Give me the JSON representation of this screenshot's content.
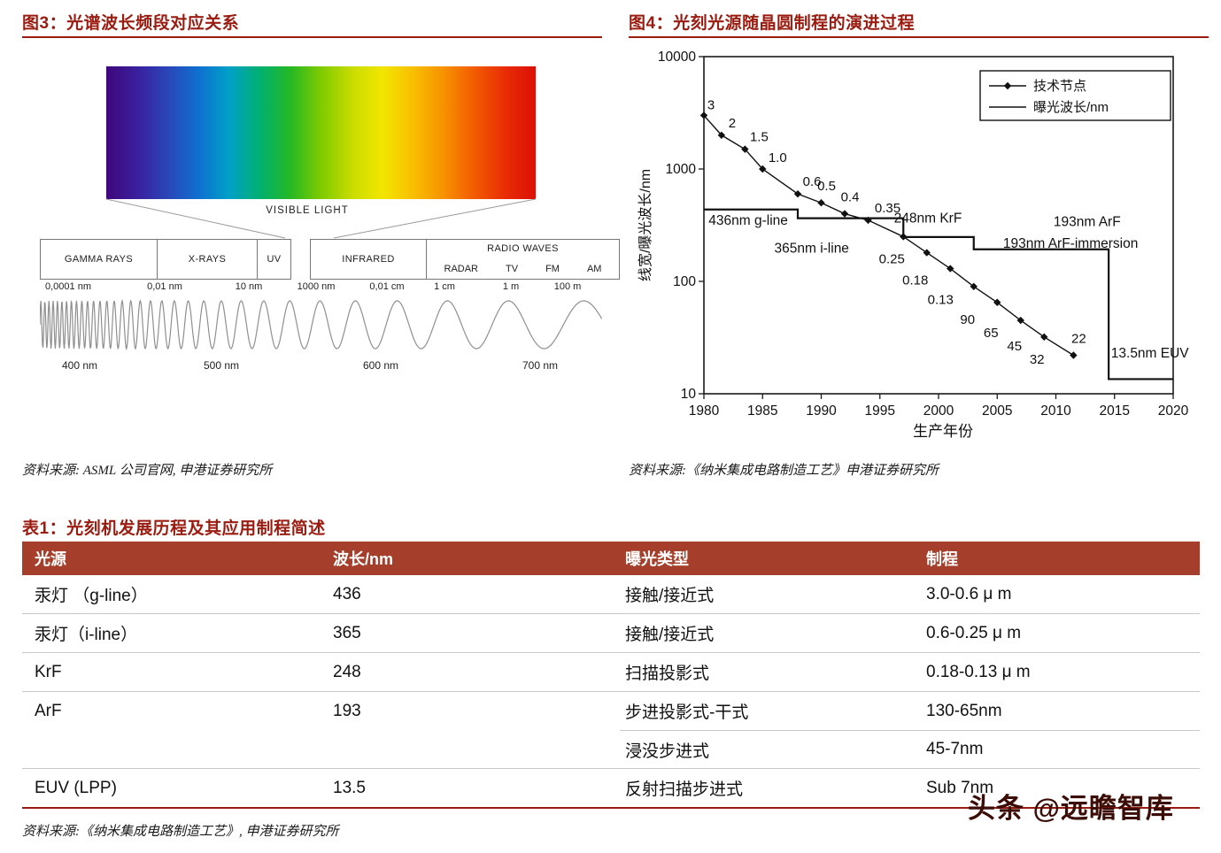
{
  "page": {
    "accent_red": "#9a1b10",
    "table_header_bg": "#a53f2b",
    "watermark_color": "#3c0d07"
  },
  "figure3": {
    "title": "图3：光谱波长频段对应关系",
    "visible_light_label": "VISIBLE LIGHT",
    "bands": {
      "group1": [
        "GAMMA RAYS",
        "X-RAYS",
        "UV"
      ],
      "infrared": "INFRARED",
      "radio_header": "RADIO WAVES",
      "radio_items": [
        "RADAR",
        "TV",
        "FM",
        "AM"
      ]
    },
    "scale_labels": [
      "0,0001 nm",
      "0,01 nm",
      "10 nm",
      "1000 nm",
      "0,01 cm",
      "1 cm",
      "1 m",
      "100 m"
    ],
    "wavelength_labels": [
      "400 nm",
      "500 nm",
      "600 nm",
      "700 nm"
    ],
    "spectrum_colors": [
      "#3f077c",
      "#3a1f9e",
      "#2a46b8",
      "#0f6fd0",
      "#00a0c8",
      "#00b070",
      "#25b825",
      "#7ecb00",
      "#c8dc00",
      "#f2e600",
      "#f8bf00",
      "#f79100",
      "#f25c00",
      "#e92c05",
      "#dc0f06"
    ],
    "source": "资料来源: ASML 公司官网, 申港证券研究所"
  },
  "figure4": {
    "title": "图4：光刻光源随晶圆制程的演进过程",
    "source": "资料来源:《纳米集成电路制造工艺》申港证券研究所",
    "chart_data": {
      "type": "line",
      "title": "光刻光源随晶圆制程的演进过程",
      "xlabel": "生产年份",
      "ylabel": "线宽/曝光波长/nm",
      "y_scale": "log",
      "xlim": [
        1980,
        2020
      ],
      "ylim": [
        10,
        10000
      ],
      "x_ticks": [
        1980,
        1985,
        1990,
        1995,
        2000,
        2005,
        2010,
        2015,
        2020
      ],
      "y_ticks": [
        10,
        100,
        1000,
        10000
      ],
      "legend_position": "top-right",
      "legend": [
        {
          "label": "技术节点",
          "marker": "diamond"
        },
        {
          "label": "曝光波长/nm",
          "marker": "line"
        }
      ],
      "series": [
        {
          "name": "技术节点",
          "points": [
            {
              "year": 1980,
              "nm": 3000,
              "label": "3",
              "dx": 8,
              "dy": -7
            },
            {
              "year": 1981.5,
              "nm": 2000,
              "label": "2",
              "dx": 12,
              "dy": -9
            },
            {
              "year": 1983.5,
              "nm": 1500,
              "label": "1.5",
              "dx": 16,
              "dy": -9
            },
            {
              "year": 1985,
              "nm": 1000,
              "label": "1.0",
              "dx": 17,
              "dy": -8
            },
            {
              "year": 1988,
              "nm": 600,
              "label": "0.6",
              "dx": 16,
              "dy": -9
            },
            {
              "year": 1990,
              "nm": 500,
              "label": "0.5",
              "dx": 6,
              "dy": -14
            },
            {
              "year": 1992,
              "nm": 400,
              "label": "0.4",
              "dx": 6,
              "dy": -14
            },
            {
              "year": 1994,
              "nm": 350,
              "label": "0.35",
              "dx": 22,
              "dy": -9
            },
            {
              "year": 1997,
              "nm": 250,
              "label": "0.25",
              "dx": -13,
              "dy": 30
            },
            {
              "year": 1999,
              "nm": 180,
              "label": "0.18",
              "dx": -13,
              "dy": 36
            },
            {
              "year": 2001,
              "nm": 130,
              "label": "0.13",
              "dx": -11,
              "dy": 40
            },
            {
              "year": 2003,
              "nm": 90,
              "label": "90",
              "dx": -7,
              "dy": 42
            },
            {
              "year": 2005,
              "nm": 65,
              "label": "65",
              "dx": -7,
              "dy": 39
            },
            {
              "year": 2007,
              "nm": 45,
              "label": "45",
              "dx": -7,
              "dy": 34
            },
            {
              "year": 2009,
              "nm": 32,
              "label": "32",
              "dx": -8,
              "dy": 30
            },
            {
              "year": 2011.5,
              "nm": 22,
              "label": "22",
              "dx": 6,
              "dy": -14
            }
          ]
        },
        {
          "name": "曝光波长/nm",
          "steps": [
            {
              "nm": 436,
              "from": 1980,
              "to": 1988
            },
            {
              "nm": 365,
              "from": 1988,
              "to": 1997
            },
            {
              "nm": 248,
              "from": 1997,
              "to": 2003
            },
            {
              "nm": 193,
              "from": 2003,
              "to": 2014.5
            },
            {
              "nm": 13.5,
              "from": 2014.5,
              "to": 2020
            }
          ]
        }
      ],
      "annotations": [
        {
          "text": "436nm g-line",
          "year": 1980.4,
          "nm": 320,
          "anchor": "start"
        },
        {
          "text": "365nm i-line",
          "year": 1986.0,
          "nm": 180,
          "anchor": "start"
        },
        {
          "text": "248nm KrF",
          "year": 1996.2,
          "nm": 335,
          "anchor": "start"
        },
        {
          "text": "193nm ArF",
          "year": 2009.8,
          "nm": 310,
          "anchor": "start"
        },
        {
          "text": "193nm ArF-immersion",
          "year": 2005.5,
          "nm": 200,
          "anchor": "start"
        },
        {
          "text": "13.5nm EUV",
          "year": 2014.7,
          "nm": 21,
          "anchor": "start"
        }
      ]
    }
  },
  "table1": {
    "title": "表1：光刻机发展历程及其应用制程简述",
    "headers": [
      "光源",
      "波长/nm",
      "曝光类型",
      "制程"
    ],
    "rows": [
      {
        "source": "汞灯 （g-line）",
        "wavelength": "436",
        "exposure": "接触/接近式",
        "process": "3.0-0.6 μ m"
      },
      {
        "source": "汞灯（i-line）",
        "wavelength": "365",
        "exposure": "接触/接近式",
        "process": "0.6-0.25 μ m"
      },
      {
        "source": "KrF",
        "wavelength": "248",
        "exposure": "扫描投影式",
        "process": "0.18-0.13 μ m"
      },
      {
        "source": "ArF",
        "wavelength": "193",
        "exposure": "步进投影式-干式",
        "process": "130-65nm"
      },
      {
        "source": "",
        "wavelength": "",
        "exposure": "浸没步进式",
        "process": "45-7nm",
        "partial_divider": true
      },
      {
        "source": "EUV (LPP)",
        "wavelength": "13.5",
        "exposure": "反射扫描步进式",
        "process": "Sub 7nm"
      }
    ],
    "source": "资料来源:《纳米集成电路制造工艺》, 申港证券研究所"
  },
  "watermark": {
    "text": "头条 @远瞻智库"
  }
}
